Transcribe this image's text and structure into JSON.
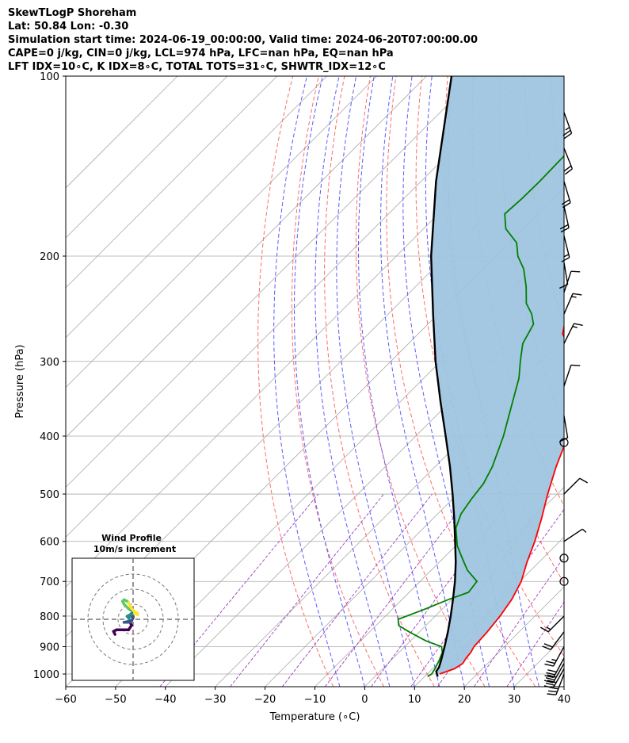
{
  "header": {
    "lines": [
      "SkewTLogP Shoreham",
      "Lat: 50.84   Lon: -0.30",
      "Simulation start time: 2024-06-19_00:00:00, Valid time: 2024-06-20T07:00:00.00",
      "CAPE=0 j/kg, CIN=0 j/kg, LCL=974 hPa, LFC=nan hPa, EQ=nan hPa",
      "LFT IDX=10∘C, K IDX=8∘C, TOTAL TOTS=31∘C, SHWTR_IDX=12∘C"
    ]
  },
  "chart_data": {
    "type": "line",
    "subtype": "skew-t log-p",
    "xlabel": "Temperature (∘C)",
    "ylabel": "Pressure (hPa)",
    "xlim": [
      -60,
      40
    ],
    "ylim": [
      1050,
      100
    ],
    "y_scale": "log",
    "x_ticks": [
      -60,
      -50,
      -40,
      -30,
      -20,
      -10,
      0,
      10,
      20,
      30,
      40
    ],
    "y_ticks": [
      100,
      200,
      300,
      400,
      500,
      600,
      700,
      800,
      900,
      1000
    ],
    "grid": true,
    "series": [
      {
        "role": "temperature",
        "color": "#ff0000",
        "points": [
          [
            1000,
            12.5
          ],
          [
            980,
            14.4
          ],
          [
            960,
            15.0
          ],
          [
            940,
            14.6
          ],
          [
            920,
            14.4
          ],
          [
            900,
            13.9
          ],
          [
            850,
            13.6
          ],
          [
            800,
            13.0
          ],
          [
            750,
            12.0
          ],
          [
            700,
            10.3
          ],
          [
            650,
            7.6
          ],
          [
            600,
            5.0
          ],
          [
            550,
            1.8
          ],
          [
            500,
            -1.9
          ],
          [
            450,
            -5.7
          ],
          [
            420,
            -7.9
          ],
          [
            400,
            -9.7
          ],
          [
            370,
            -12.5
          ],
          [
            350,
            -14.6
          ],
          [
            320,
            -19.0
          ],
          [
            300,
            -22.7
          ],
          [
            290,
            -26.2
          ],
          [
            280,
            -28.0
          ],
          [
            270,
            -31.0
          ],
          [
            250,
            -34.2
          ],
          [
            220,
            -39.9
          ],
          [
            200,
            -44.2
          ],
          [
            180,
            -50.0
          ],
          [
            150,
            -54.8
          ],
          [
            130,
            -58.9
          ],
          [
            110,
            -60.2
          ],
          [
            100,
            -61.8
          ]
        ]
      },
      {
        "role": "dewpoint",
        "color": "#008000",
        "points": [
          [
            1010,
            10.6
          ],
          [
            1000,
            10.9
          ],
          [
            980,
            10.5
          ],
          [
            950,
            9.7
          ],
          [
            920,
            8.7
          ],
          [
            900,
            7.4
          ],
          [
            880,
            3.1
          ],
          [
            850,
            -2.1
          ],
          [
            830,
            -5.4
          ],
          [
            810,
            -6.8
          ],
          [
            780,
            -3.6
          ],
          [
            750,
            -0.6
          ],
          [
            730,
            1.9
          ],
          [
            700,
            1.4
          ],
          [
            670,
            -2.8
          ],
          [
            640,
            -6.2
          ],
          [
            610,
            -9.7
          ],
          [
            570,
            -13.5
          ],
          [
            540,
            -15.3
          ],
          [
            510,
            -16.2
          ],
          [
            480,
            -16.9
          ],
          [
            450,
            -18.5
          ],
          [
            400,
            -22.4
          ],
          [
            350,
            -27.5
          ],
          [
            320,
            -30.9
          ],
          [
            300,
            -34.0
          ],
          [
            280,
            -37.1
          ],
          [
            260,
            -38.8
          ],
          [
            250,
            -41.2
          ],
          [
            240,
            -44.4
          ],
          [
            225,
            -47.8
          ],
          [
            210,
            -51.9
          ],
          [
            200,
            -55.6
          ],
          [
            190,
            -58.5
          ],
          [
            180,
            -63.5
          ],
          [
            170,
            -66.7
          ],
          [
            160,
            -66.3
          ],
          [
            150,
            -66.2
          ],
          [
            130,
            -66.5
          ],
          [
            110,
            -67.0
          ],
          [
            100,
            -67.3
          ]
        ]
      },
      {
        "role": "parcel",
        "color": "#000000",
        "points": [
          [
            1010,
            12.6
          ],
          [
            990,
            11.3
          ],
          [
            974,
            11.0
          ],
          [
            950,
            10.1
          ],
          [
            900,
            8.0
          ],
          [
            850,
            5.7
          ],
          [
            800,
            3.1
          ],
          [
            750,
            0.2
          ],
          [
            700,
            -3.0
          ],
          [
            650,
            -6.7
          ],
          [
            600,
            -11.0
          ],
          [
            550,
            -15.7
          ],
          [
            500,
            -21.0
          ],
          [
            450,
            -27.0
          ],
          [
            400,
            -34.0
          ],
          [
            350,
            -42.0
          ],
          [
            300,
            -51.0
          ],
          [
            250,
            -61.0
          ],
          [
            200,
            -73.0
          ],
          [
            150,
            -87.0
          ],
          [
            100,
            -105.0
          ]
        ]
      }
    ],
    "reference_lines": {
      "isotherms_step": 10,
      "dry_adiabats_theta_c": [
        -10,
        0,
        10,
        20,
        30,
        40,
        50,
        60,
        70,
        80,
        90,
        100,
        110
      ],
      "moist_adiabats_start_c": [
        -5,
        0,
        5,
        10,
        15,
        20,
        25,
        30,
        35
      ],
      "mixing_ratio_g_kg": [
        0.1,
        0.4,
        1,
        2,
        4,
        7,
        10,
        16,
        24
      ],
      "colors": {
        "isotherm": "#aaaaaa",
        "dry_adiabat": "#ff6b6b",
        "moist_adiabat": "#5a5aff",
        "mixing_ratio": "#9b3fbf",
        "shade": "#9fc5e0"
      }
    },
    "wind_barbs": [
      {
        "p": 1000,
        "u": 5,
        "v": 13
      },
      {
        "p": 980,
        "u": 8,
        "v": 14
      },
      {
        "p": 960,
        "u": 8,
        "v": 14
      },
      {
        "p": 940,
        "u": 7,
        "v": 13
      },
      {
        "p": 900,
        "u": 6,
        "v": 11
      },
      {
        "p": 850,
        "u": 6,
        "v": 8
      },
      {
        "p": 800,
        "u": 6,
        "v": 6
      },
      {
        "p": 700,
        "u": 0,
        "v": 0
      },
      {
        "p": 640,
        "u": 0,
        "v": 0
      },
      {
        "p": 600,
        "u": -3,
        "v": -2
      },
      {
        "p": 500,
        "u": -3,
        "v": -3
      },
      {
        "p": 410,
        "u": 0,
        "v": 0
      },
      {
        "p": 370,
        "u": -1,
        "v": 6
      },
      {
        "p": 330,
        "u": -2,
        "v": -6
      },
      {
        "p": 280,
        "u": -4,
        "v": -8
      },
      {
        "p": 250,
        "u": -3,
        "v": -7
      },
      {
        "p": 230,
        "u": -2,
        "v": -6
      },
      {
        "p": 205,
        "u": -1,
        "v": 6
      },
      {
        "p": 185,
        "u": -2,
        "v": 8
      },
      {
        "p": 165,
        "u": -2,
        "v": 9
      },
      {
        "p": 150,
        "u": -3,
        "v": 10
      },
      {
        "p": 132,
        "u": -4,
        "v": 10
      },
      {
        "p": 115,
        "u": -4,
        "v": 11
      }
    ],
    "hodograph": {
      "title": "Wind Profile",
      "subtitle": "10m/s increment",
      "rings": [
        10,
        20,
        30
      ],
      "points": [
        [
          -12,
          -10
        ],
        [
          -13,
          -8
        ],
        [
          -11,
          -7
        ],
        [
          -7,
          -7
        ],
        [
          -3,
          -7
        ],
        [
          -1,
          -4
        ],
        [
          -2,
          -2
        ],
        [
          -6,
          -2
        ],
        [
          -1,
          -1
        ],
        [
          0,
          1
        ],
        [
          0,
          2
        ],
        [
          -2,
          2
        ],
        [
          -3,
          1
        ],
        [
          -4,
          2
        ],
        [
          -2,
          3
        ],
        [
          -1,
          4
        ],
        [
          1,
          5
        ],
        [
          -3,
          7
        ],
        [
          -6,
          10
        ],
        [
          -7,
          12
        ],
        [
          -6,
          13
        ],
        [
          -4,
          12
        ],
        [
          -3,
          11
        ],
        [
          -1,
          7
        ],
        [
          1,
          5
        ],
        [
          3,
          4
        ],
        [
          1,
          4
        ],
        [
          3,
          3
        ]
      ]
    }
  }
}
